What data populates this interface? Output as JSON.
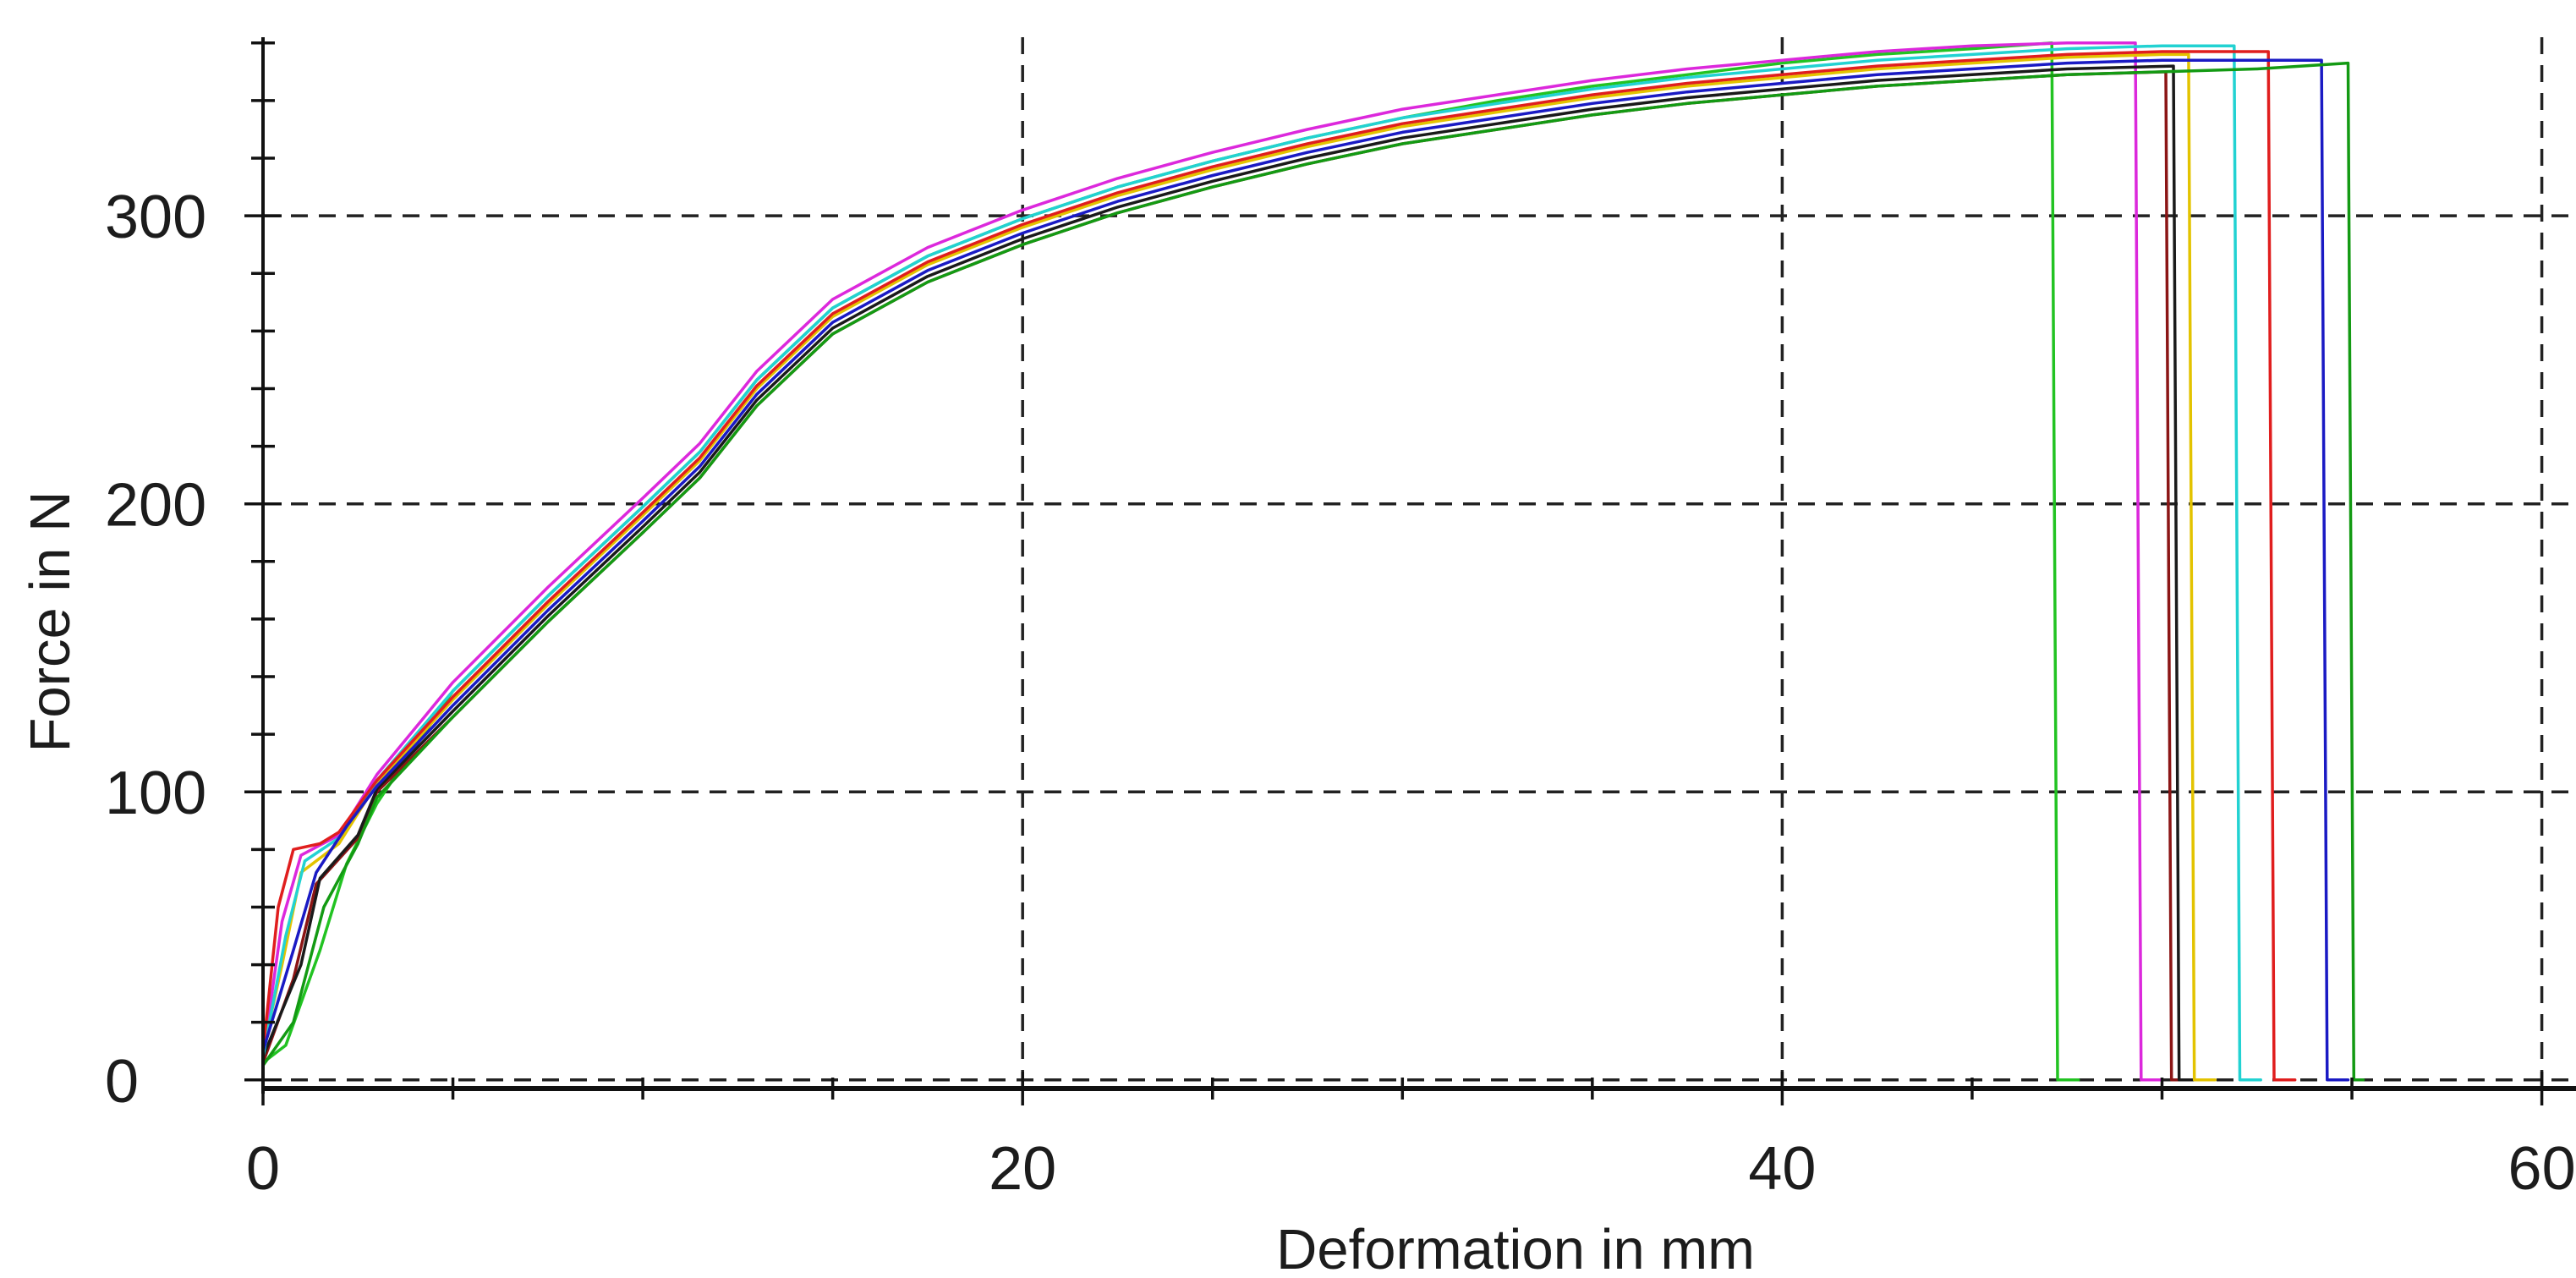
{
  "chart_data": {
    "type": "line",
    "xlabel": "Deformation in mm",
    "ylabel": "Force in N",
    "xlim": [
      0,
      60.9
    ],
    "ylim": [
      -3,
      362
    ],
    "x_ticks": [
      0,
      20,
      40,
      60
    ],
    "y_ticks": [
      0,
      100,
      200,
      300
    ],
    "x_minor_step": 5,
    "y_minor_step": 20,
    "grid": true,
    "grid_style": "dashed",
    "legend": "none",
    "series": [
      {
        "color": "#22c322",
        "points": [
          [
            0,
            6
          ],
          [
            0.6,
            12
          ],
          [
            1.5,
            45
          ],
          [
            2.2,
            75
          ],
          [
            3,
            96
          ],
          [
            5,
            135
          ],
          [
            7.5,
            168
          ],
          [
            10,
            199
          ],
          [
            11.5,
            218
          ],
          [
            13,
            243
          ],
          [
            15,
            268
          ],
          [
            17.5,
            286
          ],
          [
            20,
            299
          ],
          [
            22.5,
            310
          ],
          [
            25,
            319
          ],
          [
            27.5,
            327
          ],
          [
            30,
            334
          ],
          [
            32.5,
            340
          ],
          [
            35,
            345
          ],
          [
            37.5,
            349
          ],
          [
            40,
            353
          ],
          [
            42.5,
            356
          ],
          [
            45,
            358
          ],
          [
            47.1,
            360
          ],
          [
            47.25,
            0
          ],
          [
            47.8,
            0
          ]
        ]
      },
      {
        "color": "#dc28dc",
        "points": [
          [
            0,
            8
          ],
          [
            0.5,
            55
          ],
          [
            1,
            78
          ],
          [
            2,
            85
          ],
          [
            3,
            106
          ],
          [
            5,
            138
          ],
          [
            7.5,
            171
          ],
          [
            10,
            202
          ],
          [
            11.5,
            221
          ],
          [
            13,
            246
          ],
          [
            15,
            271
          ],
          [
            17.5,
            289
          ],
          [
            20,
            302
          ],
          [
            22.5,
            313
          ],
          [
            25,
            322
          ],
          [
            27.5,
            330
          ],
          [
            30,
            337
          ],
          [
            32.5,
            342
          ],
          [
            35,
            347
          ],
          [
            37.5,
            351
          ],
          [
            40,
            354
          ],
          [
            42.5,
            357
          ],
          [
            45,
            359
          ],
          [
            47.5,
            360
          ],
          [
            49.3,
            360
          ],
          [
            49.45,
            0
          ],
          [
            50,
            0
          ]
        ]
      },
      {
        "color": "#8b1515",
        "points": [
          [
            0,
            6
          ],
          [
            0.8,
            35
          ],
          [
            1.4,
            68
          ],
          [
            2.5,
            84
          ],
          [
            3,
            100
          ],
          [
            5,
            126
          ],
          [
            7.5,
            159
          ],
          [
            10,
            190
          ],
          [
            11.5,
            209
          ],
          [
            13,
            234
          ],
          [
            15,
            259
          ],
          [
            17.5,
            277
          ],
          [
            20,
            290
          ],
          [
            22.5,
            301
          ],
          [
            25,
            310
          ],
          [
            27.5,
            318
          ],
          [
            30,
            325
          ],
          [
            32.5,
            330
          ],
          [
            35,
            335
          ],
          [
            37.5,
            339
          ],
          [
            40,
            342
          ],
          [
            42.5,
            345
          ],
          [
            45,
            347
          ],
          [
            47.5,
            349
          ],
          [
            50.1,
            350
          ],
          [
            50.25,
            0
          ],
          [
            50.8,
            0
          ]
        ]
      },
      {
        "color": "#1a1a1a",
        "points": [
          [
            0,
            8
          ],
          [
            1,
            40
          ],
          [
            1.5,
            70
          ],
          [
            2.5,
            85
          ],
          [
            3,
            101
          ],
          [
            5,
            128
          ],
          [
            7.5,
            161
          ],
          [
            10,
            192
          ],
          [
            11.5,
            211
          ],
          [
            13,
            236
          ],
          [
            15,
            261
          ],
          [
            17.5,
            279
          ],
          [
            20,
            292
          ],
          [
            22.5,
            303
          ],
          [
            25,
            312
          ],
          [
            27.5,
            320
          ],
          [
            30,
            327
          ],
          [
            32.5,
            332
          ],
          [
            35,
            337
          ],
          [
            37.5,
            341
          ],
          [
            40,
            344
          ],
          [
            42.5,
            347
          ],
          [
            45,
            349
          ],
          [
            47.5,
            351
          ],
          [
            50.3,
            352
          ],
          [
            50.45,
            0
          ],
          [
            51,
            0
          ]
        ]
      },
      {
        "color": "#e3c300",
        "points": [
          [
            0,
            10
          ],
          [
            0.5,
            40
          ],
          [
            1,
            72
          ],
          [
            2,
            82
          ],
          [
            3,
            103
          ],
          [
            5,
            132
          ],
          [
            7.5,
            165
          ],
          [
            10,
            196
          ],
          [
            11.5,
            215
          ],
          [
            13,
            240
          ],
          [
            15,
            265
          ],
          [
            17.5,
            283
          ],
          [
            20,
            296
          ],
          [
            22.5,
            307
          ],
          [
            25,
            316
          ],
          [
            27.5,
            324
          ],
          [
            30,
            331
          ],
          [
            32.5,
            336
          ],
          [
            35,
            341
          ],
          [
            37.5,
            345
          ],
          [
            40,
            348
          ],
          [
            42.5,
            351
          ],
          [
            45,
            353
          ],
          [
            47.5,
            355
          ],
          [
            50,
            356
          ],
          [
            50.7,
            356
          ],
          [
            50.85,
            0
          ],
          [
            51.4,
            0
          ]
        ]
      },
      {
        "color": "#22d2d2",
        "points": [
          [
            0,
            8
          ],
          [
            0.6,
            50
          ],
          [
            1.1,
            76
          ],
          [
            2,
            84
          ],
          [
            3,
            104
          ],
          [
            5,
            135
          ],
          [
            7.5,
            168
          ],
          [
            10,
            199
          ],
          [
            11.5,
            218
          ],
          [
            13,
            243
          ],
          [
            15,
            268
          ],
          [
            17.5,
            286
          ],
          [
            20,
            299
          ],
          [
            22.5,
            310
          ],
          [
            25,
            319
          ],
          [
            27.5,
            327
          ],
          [
            30,
            334
          ],
          [
            32.5,
            339
          ],
          [
            35,
            344
          ],
          [
            37.5,
            348
          ],
          [
            40,
            351
          ],
          [
            42.5,
            354
          ],
          [
            45,
            356
          ],
          [
            47.5,
            358
          ],
          [
            50,
            359
          ],
          [
            51.9,
            359
          ],
          [
            52.05,
            0
          ],
          [
            52.6,
            0
          ]
        ]
      },
      {
        "color": "#e01e1e",
        "points": [
          [
            0,
            10
          ],
          [
            0.4,
            60
          ],
          [
            0.8,
            80
          ],
          [
            1.5,
            82
          ],
          [
            2,
            86
          ],
          [
            3,
            104
          ],
          [
            5,
            133
          ],
          [
            7.5,
            166
          ],
          [
            10,
            197
          ],
          [
            11.5,
            216
          ],
          [
            13,
            241
          ],
          [
            15,
            266
          ],
          [
            17.5,
            284
          ],
          [
            20,
            297
          ],
          [
            22.5,
            308
          ],
          [
            25,
            317
          ],
          [
            27.5,
            325
          ],
          [
            30,
            332
          ],
          [
            32.5,
            337
          ],
          [
            35,
            342
          ],
          [
            37.5,
            346
          ],
          [
            40,
            349
          ],
          [
            42.5,
            352
          ],
          [
            45,
            354
          ],
          [
            47.5,
            356
          ],
          [
            50,
            357
          ],
          [
            52.8,
            357
          ],
          [
            52.95,
            0
          ],
          [
            53.5,
            0
          ]
        ]
      },
      {
        "color": "#1a1ac4",
        "points": [
          [
            0,
            10
          ],
          [
            0.8,
            45
          ],
          [
            1.4,
            72
          ],
          [
            2.2,
            88
          ],
          [
            3,
            102
          ],
          [
            5,
            130
          ],
          [
            7.5,
            163
          ],
          [
            10,
            194
          ],
          [
            11.5,
            213
          ],
          [
            13,
            238
          ],
          [
            15,
            263
          ],
          [
            17.5,
            281
          ],
          [
            20,
            294
          ],
          [
            22.5,
            305
          ],
          [
            25,
            314
          ],
          [
            27.5,
            322
          ],
          [
            30,
            329
          ],
          [
            32.5,
            334
          ],
          [
            35,
            339
          ],
          [
            37.5,
            343
          ],
          [
            40,
            346
          ],
          [
            42.5,
            349
          ],
          [
            45,
            351
          ],
          [
            47.5,
            353
          ],
          [
            50,
            354
          ],
          [
            52.5,
            354
          ],
          [
            54.2,
            354
          ],
          [
            54.35,
            0
          ],
          [
            54.9,
            0
          ]
        ]
      },
      {
        "color": "#139a13",
        "points": [
          [
            0,
            5
          ],
          [
            0.8,
            20
          ],
          [
            1.6,
            60
          ],
          [
            2.5,
            82
          ],
          [
            3,
            98
          ],
          [
            5,
            126
          ],
          [
            7.5,
            159
          ],
          [
            10,
            190
          ],
          [
            11.5,
            209
          ],
          [
            13,
            234
          ],
          [
            15,
            259
          ],
          [
            17.5,
            277
          ],
          [
            20,
            290
          ],
          [
            22.5,
            301
          ],
          [
            25,
            310
          ],
          [
            27.5,
            318
          ],
          [
            30,
            325
          ],
          [
            32.5,
            330
          ],
          [
            35,
            335
          ],
          [
            37.5,
            339
          ],
          [
            40,
            342
          ],
          [
            42.5,
            345
          ],
          [
            45,
            347
          ],
          [
            47.5,
            349
          ],
          [
            50,
            350
          ],
          [
            52.5,
            351
          ],
          [
            54.9,
            353
          ],
          [
            55.05,
            0
          ],
          [
            55.3,
            0
          ]
        ]
      }
    ]
  }
}
